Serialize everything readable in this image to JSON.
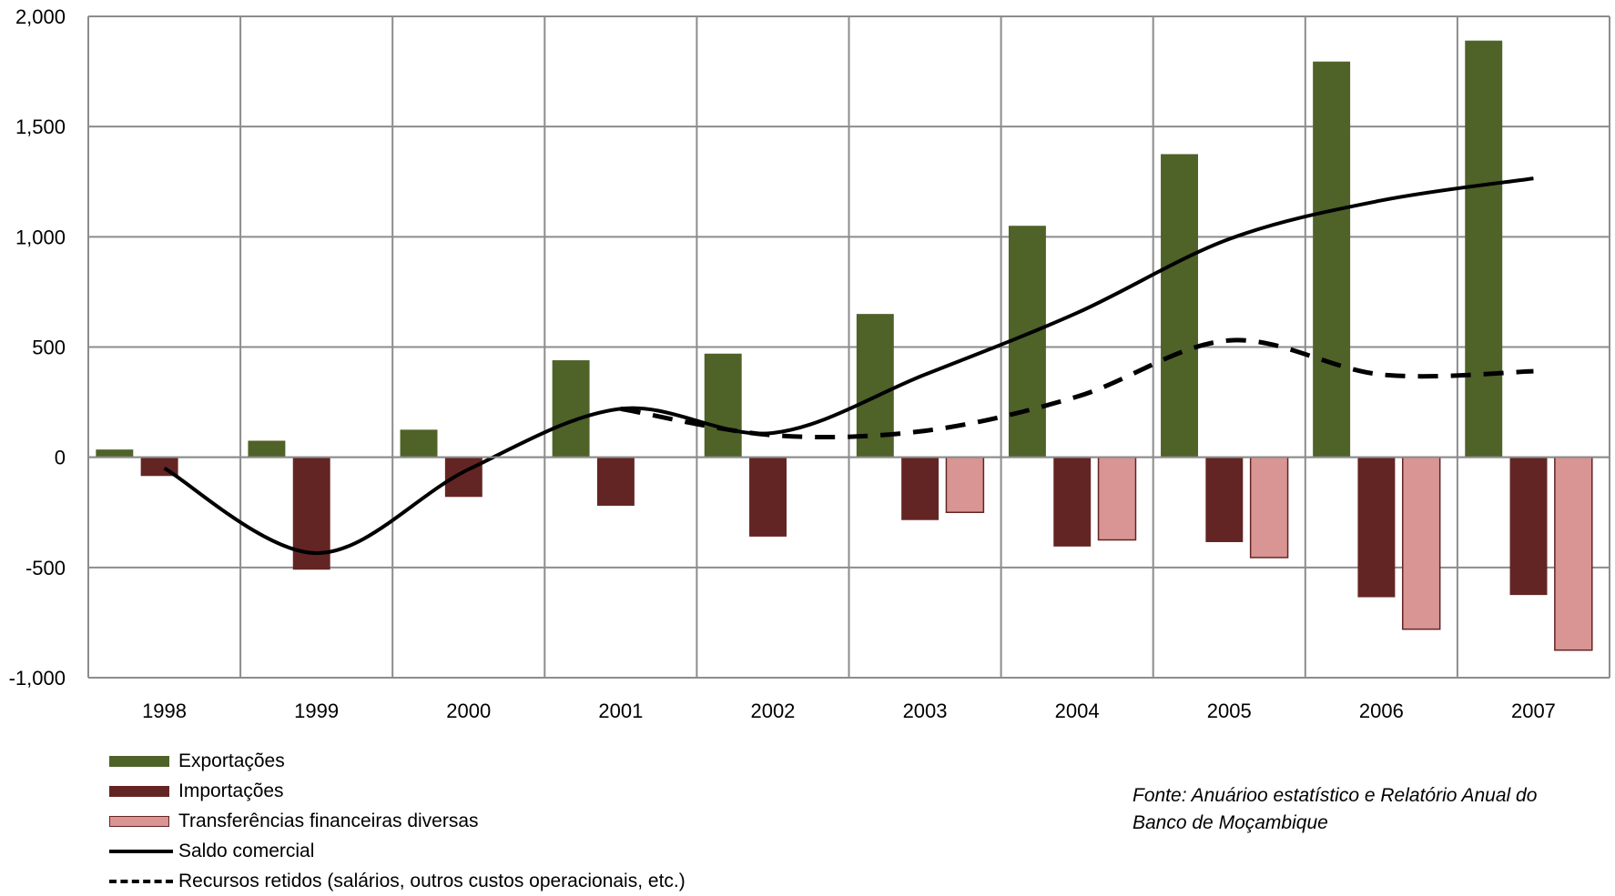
{
  "chart_data": {
    "type": "bar",
    "title": "",
    "xlabel": "",
    "ylabel": "",
    "categories": [
      "1998",
      "1999",
      "2000",
      "2001",
      "2002",
      "2003",
      "2004",
      "2005",
      "2006",
      "2007"
    ],
    "ylim": [
      -1000,
      2000
    ],
    "yticks": [
      -1000,
      -500,
      0,
      500,
      1000,
      1500,
      2000
    ],
    "ytick_labels": [
      "-1,000",
      "-500",
      "0",
      "500",
      "1,000",
      "1,500",
      "2,000"
    ],
    "grid": true,
    "legend_position": "bottom-left",
    "series": [
      {
        "name": "Exportações",
        "kind": "bar",
        "color": "#4f6228",
        "values": [
          35,
          75,
          125,
          440,
          470,
          650,
          1050,
          1375,
          1795,
          1890
        ]
      },
      {
        "name": "Importações",
        "kind": "bar",
        "color": "#632523",
        "values": [
          -85,
          -510,
          -180,
          -220,
          -360,
          -285,
          -405,
          -385,
          -635,
          -625
        ]
      },
      {
        "name": "Transferências financeiras diversas",
        "kind": "bar",
        "color": "#d99594",
        "values": [
          null,
          null,
          null,
          null,
          null,
          -250,
          -375,
          -455,
          -780,
          -875
        ]
      },
      {
        "name": "Saldo comercial",
        "kind": "line",
        "style": "solid",
        "color": "#000000",
        "values": [
          -50,
          -435,
          -55,
          220,
          110,
          375,
          655,
          990,
          1165,
          1265
        ]
      },
      {
        "name": "Recursos retidos (salários, outros custos operacionais, etc.)",
        "kind": "line",
        "style": "dashed",
        "color": "#000000",
        "values": [
          null,
          null,
          null,
          220,
          100,
          120,
          275,
          530,
          375,
          390
        ]
      }
    ],
    "annotation": "Fonte: Anuárioo estatístico e Relatório Anual do Banco de Moçambique"
  }
}
